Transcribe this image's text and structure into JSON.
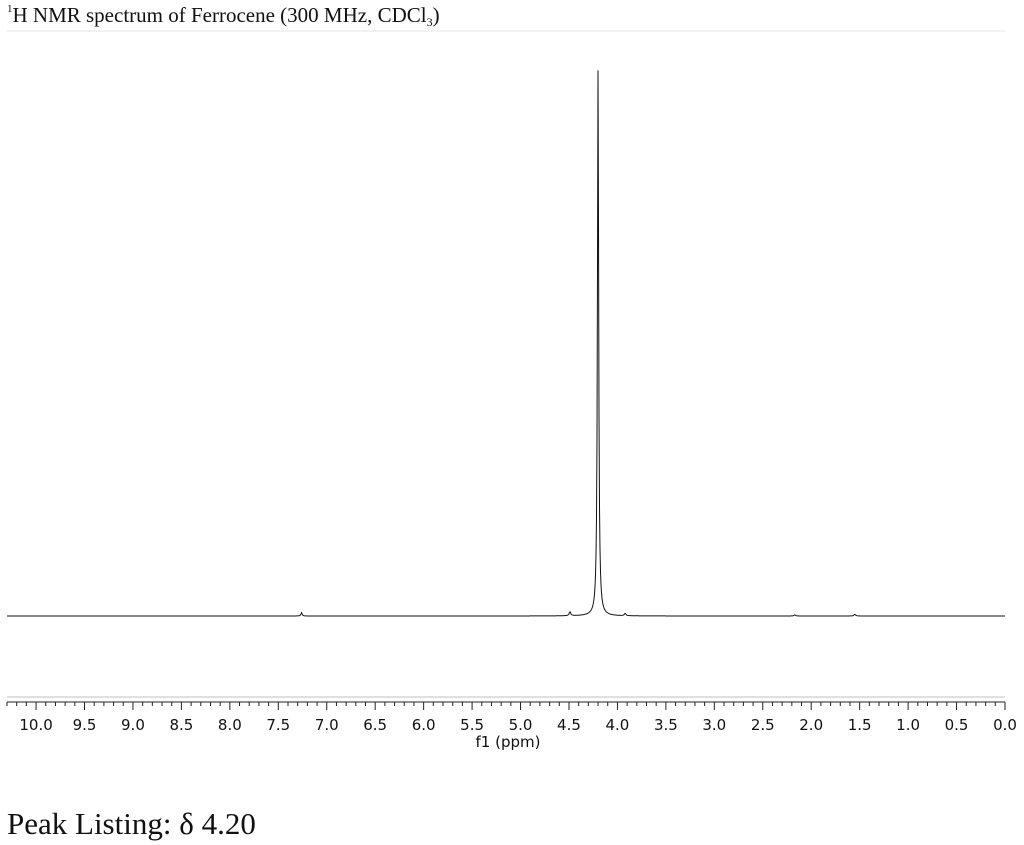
{
  "title": {
    "prefix": "1",
    "main": "H NMR spectrum of Ferrocene (300 MHz, CDCl",
    "subscript": "3",
    "suffix": ")"
  },
  "peak_listing": "Peak Listing: δ 4.20",
  "chart_data": {
    "type": "line",
    "title": "1H NMR spectrum of Ferrocene (300 MHz, CDCl3)",
    "xlabel": "f1 (ppm)",
    "ylabel": "",
    "xlim": [
      10.3,
      0.0
    ],
    "x_reversed": true,
    "ylim": [
      0,
      1.0
    ],
    "grid": false,
    "x_ticks": [
      10.0,
      9.5,
      9.0,
      8.5,
      8.0,
      7.5,
      7.0,
      6.5,
      6.0,
      5.5,
      5.0,
      4.5,
      4.0,
      3.5,
      3.0,
      2.5,
      2.0,
      1.5,
      1.0,
      0.5,
      0.0
    ],
    "x_tick_labels": [
      "10.0",
      "9.5",
      "9.0",
      "8.5",
      "8.0",
      "7.5",
      "7.0",
      "6.5",
      "6.0",
      "5.5",
      "5.0",
      "4.5",
      "4.0",
      "3.5",
      "3.0",
      "2.5",
      "2.0",
      "1.5",
      "1.0",
      "0.5",
      "0.0"
    ],
    "peaks": [
      {
        "shift": 4.2,
        "intensity": 1.0,
        "width": 0.015
      },
      {
        "shift": 7.26,
        "intensity": 0.006,
        "width": 0.015
      },
      {
        "shift": 4.49,
        "intensity": 0.007,
        "width": 0.02
      },
      {
        "shift": 3.92,
        "intensity": 0.004,
        "width": 0.02
      },
      {
        "shift": 1.55,
        "intensity": 0.003,
        "width": 0.02
      },
      {
        "shift": 2.17,
        "intensity": 0.002,
        "width": 0.02
      }
    ]
  }
}
